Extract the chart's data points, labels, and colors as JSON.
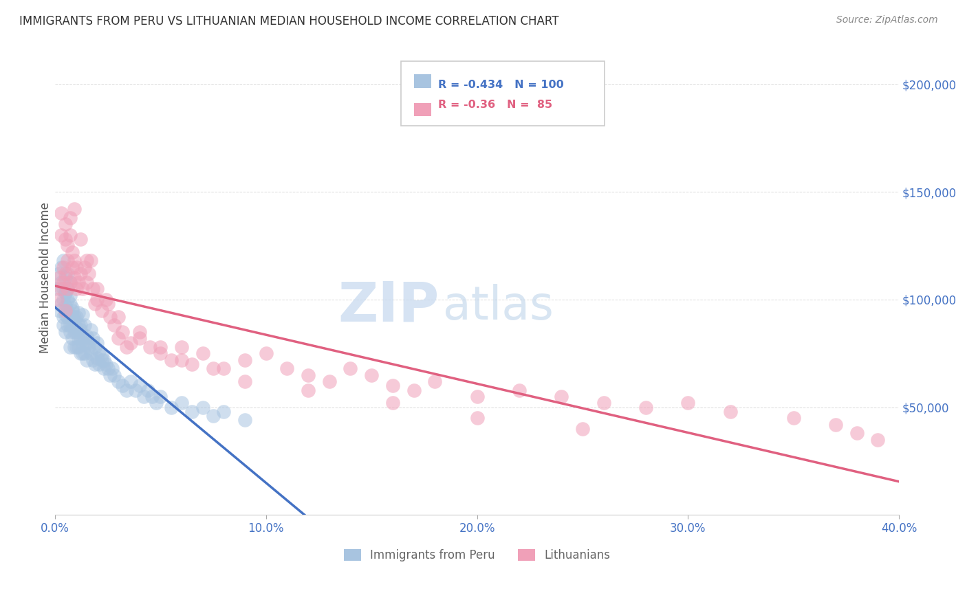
{
  "title": "IMMIGRANTS FROM PERU VS LITHUANIAN MEDIAN HOUSEHOLD INCOME CORRELATION CHART",
  "source": "Source: ZipAtlas.com",
  "ylabel_label": "Median Household Income",
  "x_min": 0.0,
  "x_max": 0.4,
  "y_min": 0,
  "y_max": 220000,
  "y_ticks": [
    0,
    50000,
    100000,
    150000,
    200000
  ],
  "y_tick_labels": [
    "",
    "$50,000",
    "$100,000",
    "$150,000",
    "$200,000"
  ],
  "x_ticks": [
    0.0,
    0.1,
    0.2,
    0.3,
    0.4
  ],
  "x_tick_labels": [
    "0.0%",
    "10.0%",
    "20.0%",
    "30.0%",
    "40.0%"
  ],
  "color_blue": "#a8c4e0",
  "color_pink": "#f0a0b8",
  "color_blue_line": "#4472c4",
  "color_pink_line": "#e06080",
  "color_axis": "#4472c4",
  "R_blue": -0.434,
  "N_blue": 100,
  "R_pink": -0.36,
  "N_pink": 85,
  "watermark_ZIP": "ZIP",
  "watermark_atlas": "atlas",
  "peru_x": [
    0.001,
    0.002,
    0.002,
    0.003,
    0.003,
    0.003,
    0.004,
    0.004,
    0.004,
    0.004,
    0.005,
    0.005,
    0.005,
    0.005,
    0.005,
    0.006,
    0.006,
    0.006,
    0.006,
    0.006,
    0.007,
    0.007,
    0.007,
    0.007,
    0.007,
    0.007,
    0.008,
    0.008,
    0.008,
    0.008,
    0.009,
    0.009,
    0.009,
    0.009,
    0.01,
    0.01,
    0.01,
    0.011,
    0.011,
    0.011,
    0.012,
    0.012,
    0.012,
    0.013,
    0.013,
    0.014,
    0.014,
    0.015,
    0.015,
    0.016,
    0.017,
    0.018,
    0.019,
    0.02,
    0.021,
    0.022,
    0.023,
    0.024,
    0.025,
    0.026,
    0.027,
    0.028,
    0.03,
    0.032,
    0.034,
    0.036,
    0.038,
    0.04,
    0.042,
    0.044,
    0.046,
    0.048,
    0.05,
    0.055,
    0.06,
    0.065,
    0.07,
    0.075,
    0.08,
    0.09,
    0.004,
    0.005,
    0.006,
    0.007,
    0.008,
    0.009,
    0.01,
    0.011,
    0.012,
    0.013,
    0.014,
    0.015,
    0.016,
    0.017,
    0.018,
    0.019,
    0.02,
    0.021,
    0.022,
    0.023
  ],
  "peru_y": [
    105000,
    112000,
    95000,
    108000,
    98000,
    115000,
    100000,
    92000,
    105000,
    88000,
    97000,
    103000,
    85000,
    110000,
    93000,
    100000,
    95000,
    88000,
    105000,
    92000,
    98000,
    85000,
    92000,
    102000,
    88000,
    78000,
    95000,
    88000,
    82000,
    92000,
    85000,
    78000,
    92000,
    88000,
    85000,
    78000,
    92000,
    82000,
    78000,
    88000,
    82000,
    75000,
    88000,
    80000,
    75000,
    82000,
    75000,
    80000,
    72000,
    78000,
    75000,
    72000,
    70000,
    73000,
    70000,
    72000,
    68000,
    70000,
    68000,
    65000,
    68000,
    65000,
    62000,
    60000,
    58000,
    62000,
    58000,
    60000,
    55000,
    58000,
    55000,
    52000,
    55000,
    50000,
    52000,
    48000,
    50000,
    46000,
    48000,
    44000,
    118000,
    103000,
    112000,
    108000,
    96000,
    90000,
    87000,
    94000,
    86000,
    93000,
    88000,
    83000,
    80000,
    86000,
    82000,
    78000,
    80000,
    76000,
    74000,
    72000
  ],
  "lith_x": [
    0.001,
    0.002,
    0.003,
    0.003,
    0.004,
    0.004,
    0.005,
    0.005,
    0.005,
    0.006,
    0.006,
    0.006,
    0.007,
    0.007,
    0.008,
    0.008,
    0.009,
    0.009,
    0.01,
    0.01,
    0.011,
    0.012,
    0.013,
    0.014,
    0.015,
    0.016,
    0.017,
    0.018,
    0.019,
    0.02,
    0.022,
    0.024,
    0.026,
    0.028,
    0.03,
    0.032,
    0.034,
    0.036,
    0.04,
    0.045,
    0.05,
    0.055,
    0.06,
    0.065,
    0.07,
    0.08,
    0.09,
    0.1,
    0.11,
    0.12,
    0.13,
    0.14,
    0.15,
    0.16,
    0.17,
    0.18,
    0.2,
    0.22,
    0.24,
    0.26,
    0.28,
    0.3,
    0.32,
    0.35,
    0.37,
    0.38,
    0.39,
    0.003,
    0.005,
    0.007,
    0.009,
    0.012,
    0.015,
    0.02,
    0.025,
    0.03,
    0.04,
    0.05,
    0.06,
    0.075,
    0.09,
    0.12,
    0.16,
    0.2,
    0.25
  ],
  "lith_y": [
    100000,
    110000,
    105000,
    130000,
    108000,
    115000,
    112000,
    95000,
    128000,
    105000,
    118000,
    125000,
    108000,
    130000,
    115000,
    122000,
    110000,
    118000,
    105000,
    115000,
    108000,
    112000,
    105000,
    115000,
    108000,
    112000,
    118000,
    105000,
    98000,
    100000,
    95000,
    100000,
    92000,
    88000,
    82000,
    85000,
    78000,
    80000,
    82000,
    78000,
    75000,
    72000,
    78000,
    70000,
    75000,
    68000,
    72000,
    75000,
    68000,
    65000,
    62000,
    68000,
    65000,
    60000,
    58000,
    62000,
    55000,
    58000,
    55000,
    52000,
    50000,
    52000,
    48000,
    45000,
    42000,
    38000,
    35000,
    140000,
    135000,
    138000,
    142000,
    128000,
    118000,
    105000,
    98000,
    92000,
    85000,
    78000,
    72000,
    68000,
    62000,
    58000,
    52000,
    45000,
    40000
  ]
}
